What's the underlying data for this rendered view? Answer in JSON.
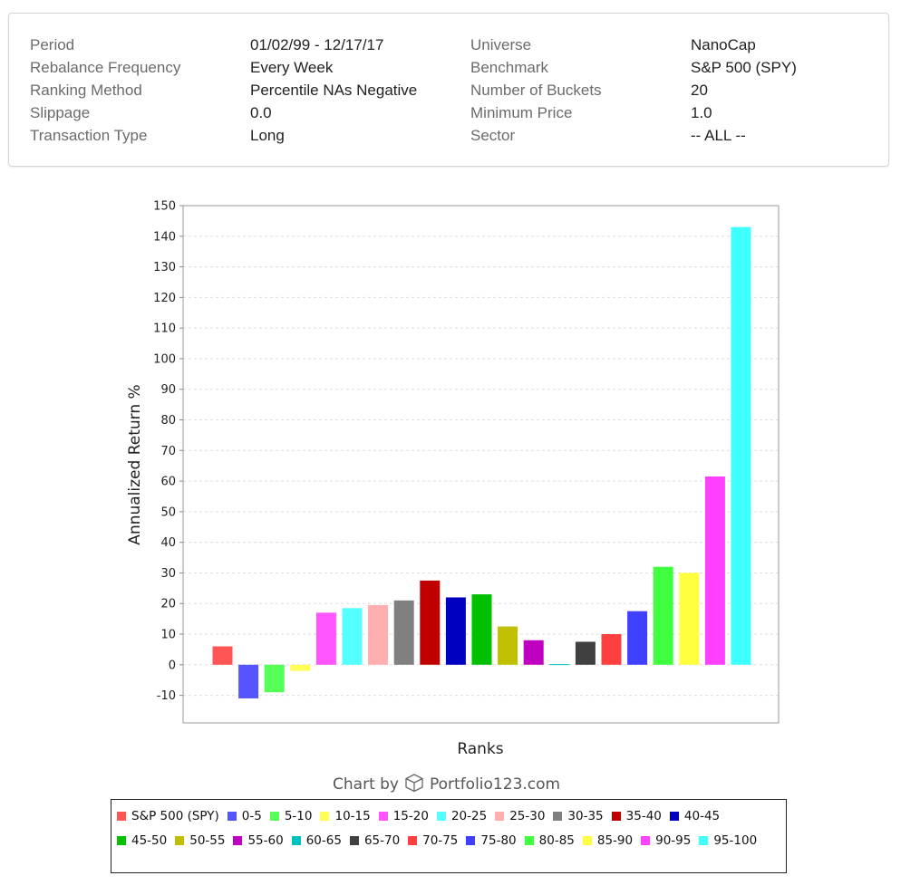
{
  "settings": {
    "rows": [
      {
        "label1": "Period",
        "value1": "01/02/99 - 12/17/17",
        "label2": "Universe",
        "value2": "NanoCap"
      },
      {
        "label1": "Rebalance Frequency",
        "value1": "Every Week",
        "label2": "Benchmark",
        "value2": "S&P 500 (SPY)"
      },
      {
        "label1": "Ranking Method",
        "value1": "Percentile NAs Negative",
        "label2": "Number of Buckets",
        "value2": "20"
      },
      {
        "label1": "Slippage",
        "value1": "0.0",
        "label2": "Minimum Price",
        "value2": "1.0"
      },
      {
        "label1": "Transaction Type",
        "value1": "Long",
        "label2": "Sector",
        "value2": "-- ALL --"
      }
    ]
  },
  "chart_data": {
    "type": "bar",
    "xlabel": "Ranks",
    "ylabel": "Annualized Return %",
    "ylim": [
      -19,
      150
    ],
    "yticks": [
      -10,
      0,
      10,
      20,
      30,
      40,
      50,
      60,
      70,
      80,
      90,
      100,
      110,
      120,
      130,
      140,
      150
    ],
    "grid": true,
    "legend_placement": "bottom",
    "series": [
      {
        "name": "S&P 500 (SPY)",
        "value": 6,
        "color": "#ff5555"
      },
      {
        "name": "0-5",
        "value": -11,
        "color": "#5555ff"
      },
      {
        "name": "5-10",
        "value": -9,
        "color": "#55ff55"
      },
      {
        "name": "10-15",
        "value": -2,
        "color": "#ffff55"
      },
      {
        "name": "15-20",
        "value": 17,
        "color": "#ff55ff"
      },
      {
        "name": "20-25",
        "value": 18.5,
        "color": "#55ffff"
      },
      {
        "name": "25-30",
        "value": 19.5,
        "color": "#ffafaf"
      },
      {
        "name": "30-35",
        "value": 21,
        "color": "#808080"
      },
      {
        "name": "35-40",
        "value": 27.5,
        "color": "#c00000"
      },
      {
        "name": "40-45",
        "value": 22,
        "color": "#0000c0"
      },
      {
        "name": "45-50",
        "value": 23,
        "color": "#00c000"
      },
      {
        "name": "50-55",
        "value": 12.5,
        "color": "#c0c000"
      },
      {
        "name": "55-60",
        "value": 8,
        "color": "#c000c0"
      },
      {
        "name": "60-65",
        "value": 0.2,
        "color": "#00c0c0"
      },
      {
        "name": "65-70",
        "value": 7.5,
        "color": "#404040"
      },
      {
        "name": "70-75",
        "value": 10,
        "color": "#ff4040"
      },
      {
        "name": "75-80",
        "value": 17.5,
        "color": "#4040ff"
      },
      {
        "name": "80-85",
        "value": 32,
        "color": "#40ff40"
      },
      {
        "name": "85-90",
        "value": 30,
        "color": "#ffff40"
      },
      {
        "name": "90-95",
        "value": 61.5,
        "color": "#ff40ff"
      },
      {
        "name": "95-100",
        "value": 143,
        "color": "#40ffff"
      }
    ]
  },
  "credit": {
    "text": "Chart by",
    "brand": "Portfolio123.com",
    "icon": "cube-logo-icon"
  }
}
